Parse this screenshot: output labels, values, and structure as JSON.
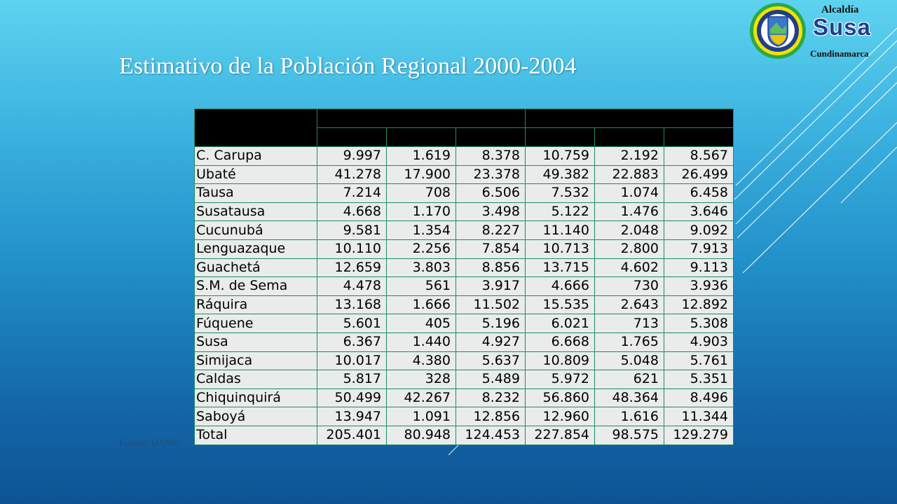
{
  "slide": {
    "title": "Estimativo de la Población Regional 2000-2004",
    "source": "Fuente: DANE"
  },
  "logo": {
    "line1": "Alcaldía",
    "line2": "Susa",
    "line3": "Cundinamarca",
    "colors": {
      "ring": "#f2e200",
      "outer": "#2aa84a",
      "inner": "#1e3f8c"
    }
  },
  "table": {
    "rows": [
      {
        "name": "C. Carupa",
        "v": [
          "9.997",
          "1.619",
          "8.378",
          "10.759",
          "2.192",
          "8.567"
        ]
      },
      {
        "name": "Ubaté",
        "v": [
          "41.278",
          "17.900",
          "23.378",
          "49.382",
          "22.883",
          "26.499"
        ]
      },
      {
        "name": "Tausa",
        "v": [
          "7.214",
          "708",
          "6.506",
          "7.532",
          "1.074",
          "6.458"
        ]
      },
      {
        "name": "Susatausa",
        "v": [
          "4.668",
          "1.170",
          "3.498",
          "5.122",
          "1.476",
          "3.646"
        ]
      },
      {
        "name": "Cucunubá",
        "v": [
          "9.581",
          "1.354",
          "8.227",
          "11.140",
          "2.048",
          "9.092"
        ]
      },
      {
        "name": "Lenguazaque",
        "v": [
          "10.110",
          "2.256",
          "7.854",
          "10.713",
          "2.800",
          "7.913"
        ]
      },
      {
        "name": "Guachetá",
        "v": [
          "12.659",
          "3.803",
          "8.856",
          "13.715",
          "4.602",
          "9.113"
        ]
      },
      {
        "name": "S.M. de Sema",
        "v": [
          "4.478",
          "561",
          "3.917",
          "4.666",
          "730",
          "3.936"
        ]
      },
      {
        "name": "Ráquira",
        "v": [
          "13.168",
          "1.666",
          "11.502",
          "15.535",
          "2.643",
          "12.892"
        ]
      },
      {
        "name": "Fúquene",
        "v": [
          "5.601",
          "405",
          "5.196",
          "6.021",
          "713",
          "5.308"
        ]
      },
      {
        "name": "Susa",
        "v": [
          "6.367",
          "1.440",
          "4.927",
          "6.668",
          "1.765",
          "4.903"
        ]
      },
      {
        "name": "Simijaca",
        "v": [
          "10.017",
          "4.380",
          "5.637",
          "10.809",
          "5.048",
          "5.761"
        ]
      },
      {
        "name": "Caldas",
        "v": [
          "5.817",
          "328",
          "5.489",
          "5.972",
          "621",
          "5.351"
        ]
      },
      {
        "name": "Chiquinquirá",
        "v": [
          "50.499",
          "42.267",
          "8.232",
          "56.860",
          "48.364",
          "8.496"
        ]
      },
      {
        "name": "Saboyá",
        "v": [
          "13.947",
          "1.091",
          "12.856",
          "12.960",
          "1.616",
          "11.344"
        ]
      },
      {
        "name": "Total",
        "v": [
          "205.401",
          "80.948",
          "124.453",
          "227.854",
          "98.575",
          "129.279"
        ]
      }
    ]
  }
}
